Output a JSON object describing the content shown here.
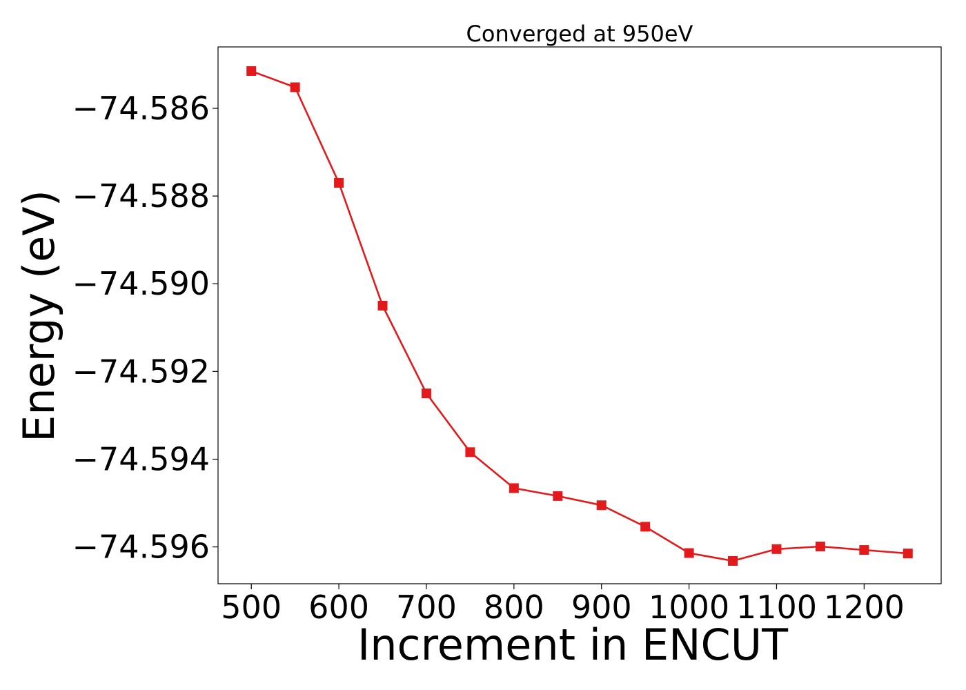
{
  "chart_data": {
    "type": "line",
    "title": "Converged at 950eV",
    "xlabel": "Increment in ENCUT",
    "ylabel": "Energy (eV)",
    "x": [
      500,
      550,
      600,
      650,
      700,
      750,
      800,
      850,
      900,
      950,
      1000,
      1050,
      1100,
      1150,
      1200,
      1250
    ],
    "series": [
      {
        "values": [
          -74.58515,
          -74.58552,
          -74.5877,
          -74.5905,
          -74.5925,
          -74.59384,
          -74.59466,
          -74.59484,
          -74.59505,
          -74.59554,
          -74.59614,
          -74.59632,
          -74.59605,
          -74.59599,
          -74.59607,
          -74.59615
        ],
        "color": "#e31a1c",
        "marker": "square"
      }
    ],
    "xlim": [
      462,
      1288
    ],
    "ylim": [
      -74.59684,
      -74.5846
    ],
    "xticks": [
      500,
      600,
      700,
      800,
      900,
      1000,
      1100,
      1200
    ],
    "xtick_labels": [
      "500",
      "600",
      "700",
      "800",
      "900",
      "1000",
      "1100",
      "1200"
    ],
    "yticks": [
      -74.586,
      -74.588,
      -74.59,
      -74.592,
      -74.594,
      -74.596
    ],
    "ytick_labels": [
      "−74.586",
      "−74.588",
      "−74.590",
      "−74.592",
      "−74.594",
      "−74.596"
    ],
    "grid": false,
    "legend": "none"
  }
}
